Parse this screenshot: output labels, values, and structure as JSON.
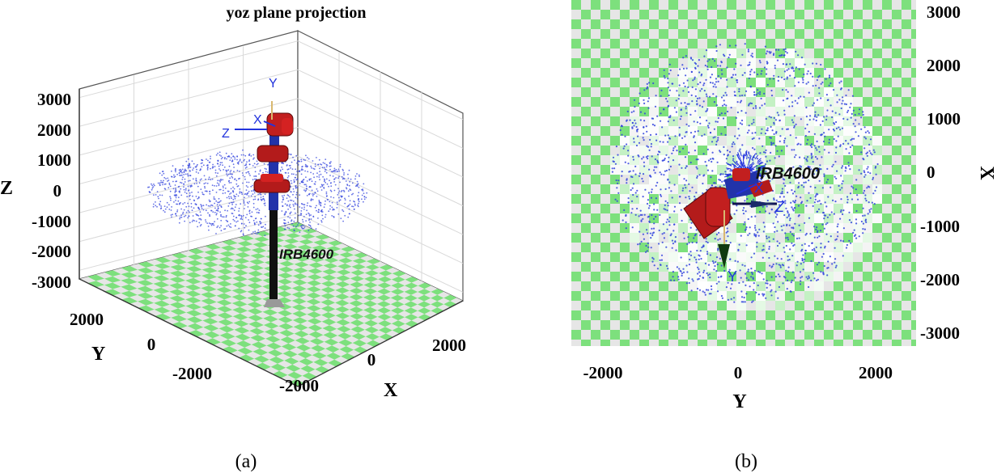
{
  "chart_data": [
    {
      "type": "scatter",
      "panel": "(a)",
      "title": "yoz plane projection",
      "xlabel": "X",
      "ylabel": "Y",
      "zlabel": "Z",
      "xticks": [
        "-2000",
        "0",
        "2000"
      ],
      "yticks": [
        "2000",
        "0",
        "-2000"
      ],
      "zticks": [
        "3000",
        "2000",
        "1000",
        "0",
        "-1000",
        "-2000",
        "-3000"
      ],
      "zlim": [
        -3300,
        3300
      ],
      "point_cloud": {
        "color": "#3344dd",
        "z_band": [
          -800,
          1200
        ],
        "radius": 2700
      },
      "floor_colors": [
        "#7de07d",
        "#e6e6e6"
      ],
      "robot_label": "IRB4600",
      "frame_labels": [
        "Y",
        "X",
        "Z"
      ],
      "grid": true
    },
    {
      "type": "scatter",
      "panel": "(b)",
      "xlabel": "Y",
      "ylabel": "X",
      "xticks": [
        "-2000",
        "0",
        "2000"
      ],
      "yticks": [
        "3000",
        "2000",
        "1000",
        "0",
        "-1000",
        "-2000",
        "-3000"
      ],
      "ylim": [
        -3300,
        3300
      ],
      "point_cloud": {
        "color": "#3344dd",
        "radius": 2700
      },
      "floor_colors": [
        "#7de07d",
        "#e6e6e6"
      ],
      "robot_label": "IRB4600",
      "frame_labels": [
        "X",
        "Z",
        "Y"
      ]
    }
  ]
}
